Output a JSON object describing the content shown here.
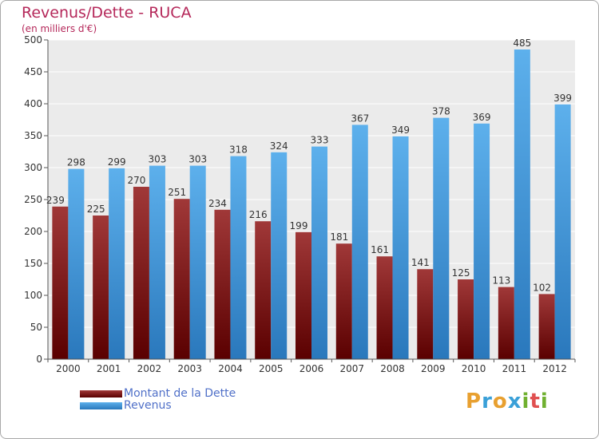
{
  "header": {
    "title": "Revenus/Dette - RUCA",
    "subtitle": "(en milliers d'€)"
  },
  "chart_data": {
    "type": "bar",
    "categories": [
      "2000",
      "2001",
      "2002",
      "2003",
      "2004",
      "2005",
      "2006",
      "2007",
      "2008",
      "2009",
      "2010",
      "2011",
      "2012"
    ],
    "series": [
      {
        "name": "Montant de la Dette",
        "values": [
          239,
          225,
          270,
          251,
          234,
          216,
          199,
          181,
          161,
          141,
          125,
          113,
          102
        ],
        "color": "#7a1a1a"
      },
      {
        "name": "Revenus",
        "values": [
          298,
          299,
          303,
          303,
          318,
          324,
          333,
          367,
          349,
          378,
          369,
          485,
          399
        ],
        "color": "#4aa0e0"
      }
    ],
    "ylim": [
      0,
      500
    ],
    "yticks": [
      0,
      50,
      100,
      150,
      200,
      250,
      300,
      350,
      400,
      450,
      500
    ],
    "grid": true,
    "legend_position": "bottom-left"
  },
  "logo": {
    "letters": [
      "P",
      "r",
      "o",
      "x",
      "i",
      "t",
      "i"
    ],
    "colors": [
      "#e8a030",
      "#3aa0d8",
      "#e8a030",
      "#3aa0d8",
      "#70b030",
      "#e05050",
      "#70b030"
    ]
  }
}
